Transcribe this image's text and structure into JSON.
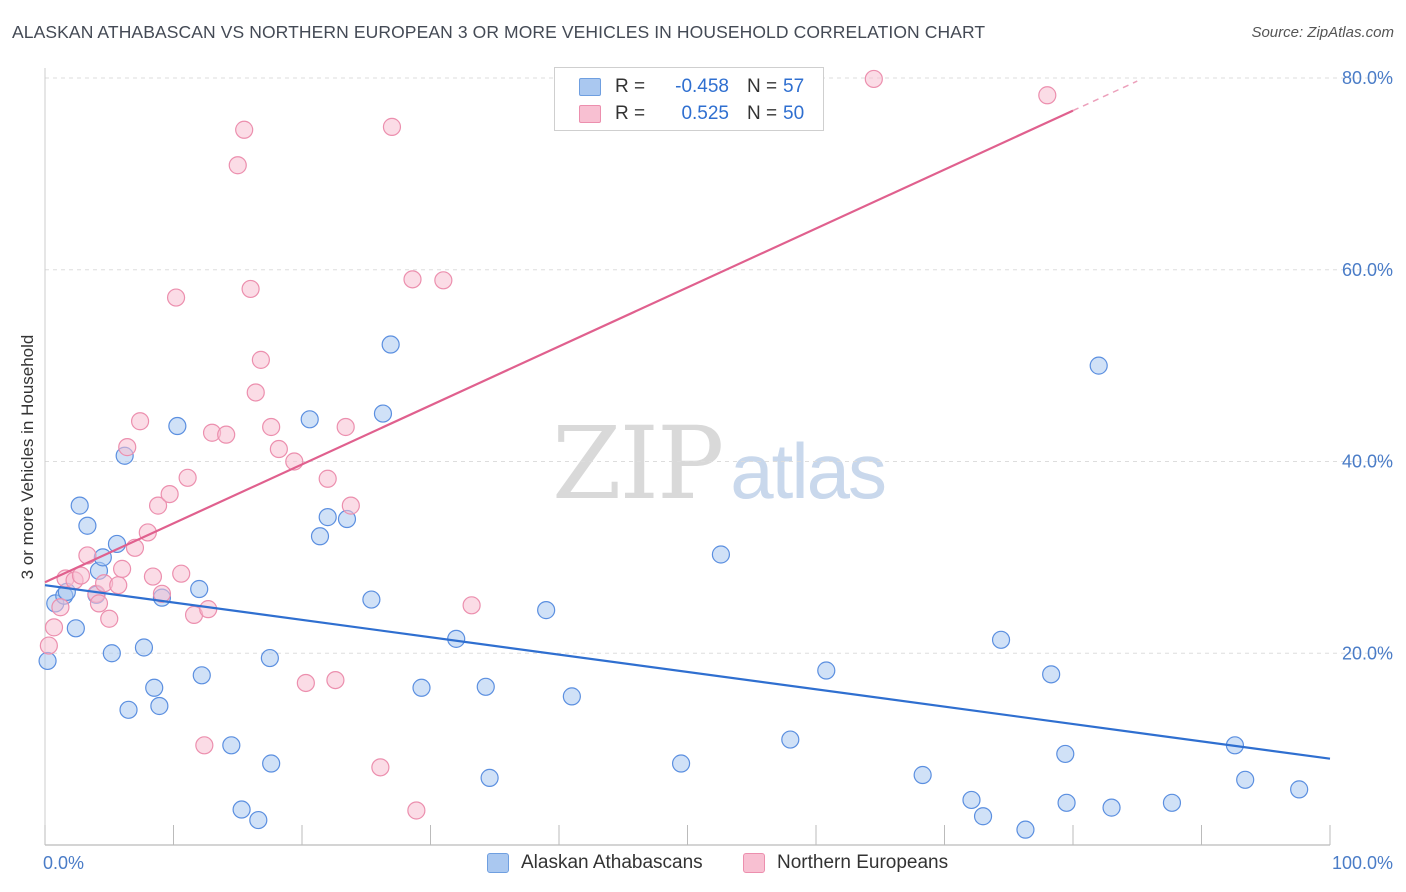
{
  "header": {
    "title": "ALASKAN ATHABASCAN VS NORTHERN EUROPEAN 3 OR MORE VEHICLES IN HOUSEHOLD CORRELATION CHART",
    "source": "Source: ZipAtlas.com"
  },
  "watermark": {
    "zip": "ZIP",
    "atlas": "atlas"
  },
  "legend": {
    "rows": [
      {
        "r_label": "R =",
        "r_value": "-0.458",
        "n_label": "N =",
        "n_value": "57",
        "color": "#aac8f0",
        "border": "#6f9fe0"
      },
      {
        "r_label": "R =",
        "r_value": "0.525",
        "n_label": "N =",
        "n_value": "50",
        "color": "#f8c0d2",
        "border": "#ec8fae"
      }
    ]
  },
  "bottom_legend": {
    "series1": "Alaskan Athabascans",
    "series2": "Northern Europeans"
  },
  "chart_data": {
    "type": "scatter",
    "title": "ALASKAN ATHABASCAN VS NORTHERN EUROPEAN 3 OR MORE VEHICLES IN HOUSEHOLD CORRELATION CHART",
    "xlabel": "",
    "ylabel": "3 or more Vehicles in Household",
    "xlim": [
      0,
      100
    ],
    "ylim": [
      0,
      80
    ],
    "x_tick_labels": [
      "0.0%",
      "100.0%"
    ],
    "y_ticks": [
      20,
      40,
      60,
      80
    ],
    "y_tick_labels": [
      "20.0%",
      "40.0%",
      "60.0%",
      "80.0%"
    ],
    "colors": {
      "blue": "#5b8fe0",
      "blue_fill": "#aac8f0",
      "blue_line": "#2f6fd0",
      "pink": "#ec8fae",
      "pink_fill": "#f8c0d2",
      "pink_line": "#e0608e"
    },
    "series": [
      {
        "name": "Alaskan Athabascans",
        "trend": {
          "x0": 0,
          "y0": 27.1,
          "x1": 100,
          "y1": 9.0
        },
        "points": [
          [
            0.2,
            19.2
          ],
          [
            0.8,
            25.2
          ],
          [
            1.5,
            26.0
          ],
          [
            1.7,
            26.4
          ],
          [
            2.4,
            22.6
          ],
          [
            2.7,
            35.4
          ],
          [
            3.3,
            33.3
          ],
          [
            4.0,
            26.1
          ],
          [
            4.2,
            28.6
          ],
          [
            4.5,
            30.0
          ],
          [
            5.2,
            20.0
          ],
          [
            5.6,
            31.4
          ],
          [
            6.2,
            40.6
          ],
          [
            6.5,
            14.1
          ],
          [
            7.7,
            20.6
          ],
          [
            8.5,
            16.4
          ],
          [
            8.9,
            14.5
          ],
          [
            9.1,
            25.8
          ],
          [
            10.3,
            43.7
          ],
          [
            12.0,
            26.7
          ],
          [
            12.2,
            17.7
          ],
          [
            14.5,
            10.4
          ],
          [
            15.3,
            3.7
          ],
          [
            16.6,
            2.6
          ],
          [
            17.5,
            19.5
          ],
          [
            17.6,
            8.5
          ],
          [
            20.6,
            44.4
          ],
          [
            21.4,
            32.2
          ],
          [
            22.0,
            34.2
          ],
          [
            23.5,
            34.0
          ],
          [
            25.4,
            25.6
          ],
          [
            26.3,
            45.0
          ],
          [
            26.9,
            52.2
          ],
          [
            29.3,
            16.4
          ],
          [
            32.0,
            21.5
          ],
          [
            34.3,
            16.5
          ],
          [
            34.6,
            7.0
          ],
          [
            39.0,
            24.5
          ],
          [
            41.0,
            15.5
          ],
          [
            49.5,
            8.5
          ],
          [
            52.6,
            30.3
          ],
          [
            58.0,
            11.0
          ],
          [
            60.8,
            18.2
          ],
          [
            68.3,
            7.3
          ],
          [
            72.1,
            4.7
          ],
          [
            73.0,
            3.0
          ],
          [
            74.4,
            21.4
          ],
          [
            76.3,
            1.6
          ],
          [
            78.3,
            17.8
          ],
          [
            79.4,
            9.5
          ],
          [
            79.5,
            4.4
          ],
          [
            82.0,
            50.0
          ],
          [
            83.0,
            3.9
          ],
          [
            87.7,
            4.4
          ],
          [
            92.6,
            10.4
          ],
          [
            93.4,
            6.8
          ],
          [
            97.6,
            5.8
          ]
        ]
      },
      {
        "name": "Northern Europeans",
        "trend": {
          "x0": 0,
          "y0": 27.4,
          "x1": 80,
          "y1": 76.6,
          "dash_to_x": 85
        },
        "points": [
          [
            0.3,
            20.8
          ],
          [
            0.7,
            22.7
          ],
          [
            1.2,
            24.8
          ],
          [
            1.6,
            27.8
          ],
          [
            2.3,
            27.6
          ],
          [
            2.8,
            28.1
          ],
          [
            3.3,
            30.2
          ],
          [
            4.0,
            26.2
          ],
          [
            4.2,
            25.2
          ],
          [
            4.6,
            27.3
          ],
          [
            5.0,
            23.6
          ],
          [
            5.7,
            27.1
          ],
          [
            6.0,
            28.8
          ],
          [
            6.4,
            41.5
          ],
          [
            7.0,
            31.0
          ],
          [
            7.4,
            44.2
          ],
          [
            8.0,
            32.6
          ],
          [
            8.4,
            28.0
          ],
          [
            8.8,
            35.4
          ],
          [
            9.1,
            26.2
          ],
          [
            9.7,
            36.6
          ],
          [
            10.2,
            57.1
          ],
          [
            10.6,
            28.3
          ],
          [
            11.1,
            38.3
          ],
          [
            11.6,
            24.0
          ],
          [
            12.4,
            10.4
          ],
          [
            12.7,
            24.6
          ],
          [
            13.0,
            43.0
          ],
          [
            14.1,
            42.8
          ],
          [
            15.0,
            70.9
          ],
          [
            15.5,
            74.6
          ],
          [
            16.0,
            58.0
          ],
          [
            16.4,
            47.2
          ],
          [
            16.8,
            50.6
          ],
          [
            17.6,
            43.6
          ],
          [
            18.2,
            41.3
          ],
          [
            19.4,
            40.0
          ],
          [
            20.3,
            16.9
          ],
          [
            22.0,
            38.2
          ],
          [
            22.6,
            17.2
          ],
          [
            23.4,
            43.6
          ],
          [
            23.8,
            35.4
          ],
          [
            26.1,
            8.1
          ],
          [
            27.0,
            74.9
          ],
          [
            28.6,
            59.0
          ],
          [
            28.9,
            3.6
          ],
          [
            31.0,
            58.9
          ],
          [
            33.2,
            25.0
          ],
          [
            64.5,
            79.9
          ],
          [
            78.0,
            78.2
          ]
        ]
      }
    ]
  }
}
